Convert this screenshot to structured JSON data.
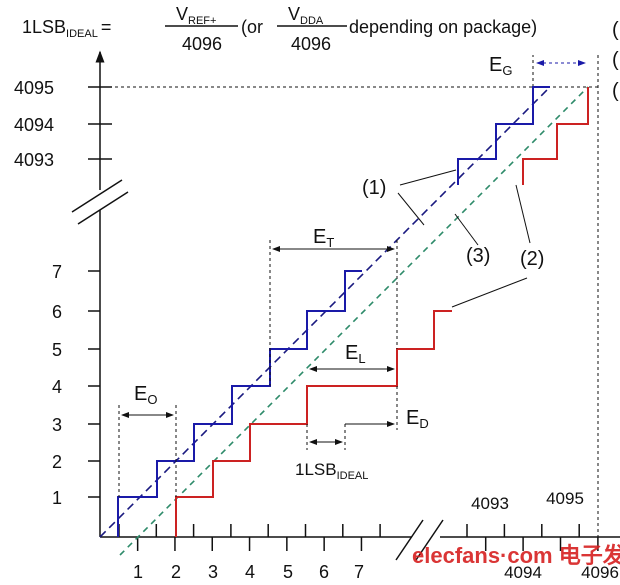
{
  "formula": {
    "lhs": "1LSB",
    "lhs_sub": "IDEAL",
    "eq": "=",
    "num1": "V",
    "num1_sub": "REF+",
    "den1": "4096",
    "or": "(or",
    "num2": "V",
    "num2_sub": "DDA",
    "den2": "4096",
    "tail": "depending on package)"
  },
  "right_marks": [
    "(",
    "(",
    "("
  ],
  "y_ticks_low": [
    "1",
    "2",
    "3",
    "4",
    "5",
    "6",
    "7"
  ],
  "y_ticks_high": [
    "4093",
    "4094",
    "4095"
  ],
  "x_ticks_low": [
    "1",
    "2",
    "3",
    "4",
    "5",
    "6",
    "7"
  ],
  "x_ticks_high_top": [
    "4093",
    "4095"
  ],
  "x_ticks_high_bottom": [
    "4094",
    "4096"
  ],
  "labels": {
    "eo": "E",
    "eo_sub": "O",
    "et": "E",
    "et_sub": "T",
    "el": "E",
    "el_sub": "L",
    "ed": "E",
    "ed_sub": "D",
    "eg": "E",
    "eg_sub": "G",
    "lsb": "1LSB",
    "lsb_sub": "IDEAL",
    "c1": "(1)",
    "c2": "(2)",
    "c3": "(3)"
  },
  "watermark": "elecfans·com 电子发烧友",
  "colors": {
    "actual": "#1a1aa8",
    "offset": "#cc2222",
    "ideal": "#2e8b6a",
    "ideal_blue": "#1a1a80"
  }
}
